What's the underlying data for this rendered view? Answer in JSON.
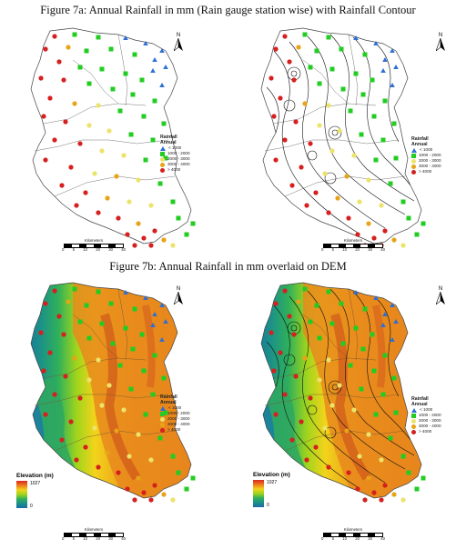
{
  "figure_a": {
    "title": "Figure 7a: Annual Rainfall in mm (Rain gauge station wise) with Rainfall Contour"
  },
  "figure_b": {
    "title": "Figure 7b: Annual Rainfall in mm overlaid on DEM"
  },
  "legend": {
    "title": "Rainfall",
    "subtitle": "Annual",
    "items": [
      {
        "label": "< 1000",
        "symbol": "blue-triangle",
        "color": "#2d6fd6"
      },
      {
        "label": "1000 - 2000",
        "symbol": "green-square",
        "color": "#22cc22"
      },
      {
        "label": "2000 - 3000",
        "symbol": "pale-yellow-circle",
        "color": "#ece36a"
      },
      {
        "label": "3000 - 4000",
        "symbol": "orange-circle",
        "color": "#e8a317"
      },
      {
        "label": "> 4000",
        "symbol": "red-circle",
        "color": "#d61f1f"
      }
    ]
  },
  "north": {
    "label": "N"
  },
  "scale": {
    "unit": "Kilometers",
    "ticks": [
      "0",
      "5",
      "10",
      "20",
      "30",
      "40"
    ]
  },
  "elevation": {
    "title": "Elevation (m)",
    "max": "1027",
    "min": "0"
  }
}
